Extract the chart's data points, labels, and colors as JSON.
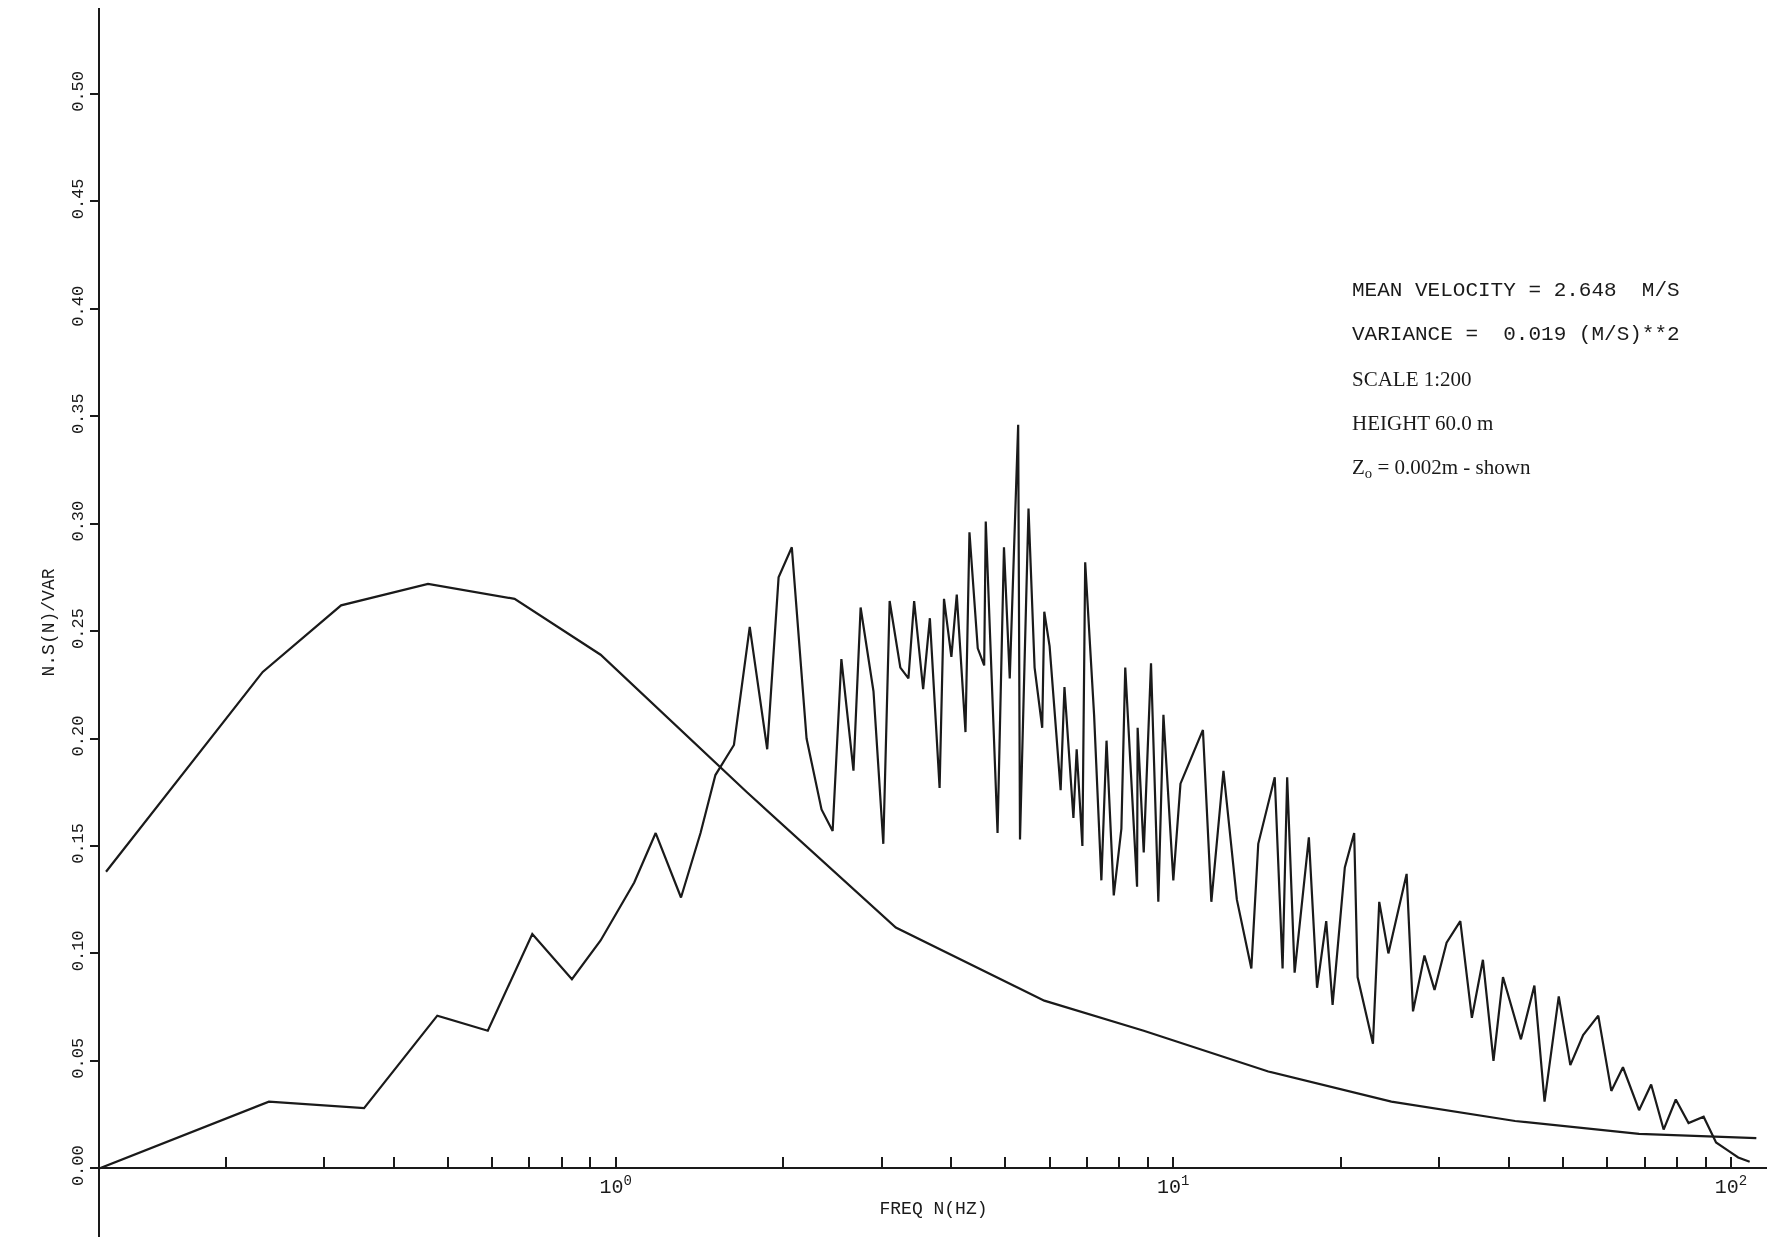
{
  "chart_data": {
    "type": "line",
    "xlabel": "FREQ N(HZ)",
    "ylabel": "N.S(N)/VAR",
    "log": "x",
    "xlim": [
      0.119,
      116
    ],
    "ylim": [
      -0.032,
      0.54
    ],
    "xticks": [
      {
        "value": 0.2,
        "label": null
      },
      {
        "value": 0.3,
        "label": null
      },
      {
        "value": 0.4,
        "label": null
      },
      {
        "value": 0.5,
        "label": null
      },
      {
        "value": 0.6,
        "label": null
      },
      {
        "value": 0.7,
        "label": null
      },
      {
        "value": 0.8,
        "label": null
      },
      {
        "value": 0.9,
        "label": null
      },
      {
        "value": 1,
        "label": "10$^{0}$"
      },
      {
        "value": 2,
        "label": null
      },
      {
        "value": 3,
        "label": null
      },
      {
        "value": 4,
        "label": null
      },
      {
        "value": 5,
        "label": null
      },
      {
        "value": 6,
        "label": null
      },
      {
        "value": 7,
        "label": null
      },
      {
        "value": 8,
        "label": null
      },
      {
        "value": 9,
        "label": null
      },
      {
        "value": 10,
        "label": "10$^{1}$"
      },
      {
        "value": 20,
        "label": null
      },
      {
        "value": 30,
        "label": null
      },
      {
        "value": 40,
        "label": null
      },
      {
        "value": 50,
        "label": null
      },
      {
        "value": 60,
        "label": null
      },
      {
        "value": 70,
        "label": null
      },
      {
        "value": 80,
        "label": null
      },
      {
        "value": 90,
        "label": null
      },
      {
        "value": 100,
        "label": "10$^{2}$"
      }
    ],
    "yticks": [
      {
        "value": 0,
        "label": "0.00"
      },
      {
        "value": 0.05,
        "label": "0.05"
      },
      {
        "value": 0.1,
        "label": "0.10"
      },
      {
        "value": 0.15,
        "label": "0.15"
      },
      {
        "value": 0.2,
        "label": "0.20"
      },
      {
        "value": 0.25,
        "label": "0.25"
      },
      {
        "value": 0.3,
        "label": "0.30"
      },
      {
        "value": 0.35,
        "label": "0.35"
      },
      {
        "value": 0.4,
        "label": "0.40"
      },
      {
        "value": 0.45,
        "label": "0.45"
      },
      {
        "value": 0.5,
        "label": "0.50"
      }
    ],
    "marker": "none",
    "line_style": "solid",
    "annotations": [
      "MEAN VELOCITY = 2.648  M/S",
      "VARIANCE =  0.019 (M/S)**2",
      "SCALE 1:200",
      "HEIGHT 60.0 m",
      "Z$_{o}$ = 0.002m - shown"
    ],
    "series": [
      {
        "color": "#1a1a1a",
        "x": [
          0.122,
          0.233,
          0.322,
          0.461,
          0.659,
          0.94,
          1.72,
          3.18,
          5.87,
          8.85,
          14.8,
          24.6,
          41.0,
          68.4,
          111
        ],
        "values": [
          0.138,
          0.231,
          0.262,
          0.272,
          0.265,
          0.239,
          0.175,
          0.112,
          0.078,
          0.064,
          0.045,
          0.031,
          0.022,
          0.016,
          0.014
        ]
      },
      {
        "color": "#1a1a1a",
        "x": [
          0.119,
          0.239,
          0.354,
          0.479,
          0.59,
          0.709,
          0.835,
          0.94,
          1.08,
          1.18,
          1.31,
          1.42,
          1.51,
          1.63,
          1.74,
          1.87,
          1.96,
          2.07,
          2.2,
          2.34,
          2.45,
          2.54,
          2.67,
          2.75,
          2.9,
          3.02,
          3.1,
          3.24,
          3.35,
          3.43,
          3.56,
          3.66,
          3.81,
          3.88,
          4.0,
          4.09,
          4.24,
          4.31,
          4.46,
          4.58,
          4.61,
          4.84,
          4.97,
          5.09,
          5.27,
          5.31,
          5.5,
          5.64,
          5.82,
          5.87,
          6.0,
          6.28,
          6.38,
          6.62,
          6.71,
          6.87,
          6.95,
          7.21,
          7.43,
          7.59,
          7.82,
          8.07,
          8.2,
          8.61,
          8.63,
          8.85,
          9.12,
          9.4,
          9.6,
          10.0,
          10.3,
          11.3,
          11.7,
          12.3,
          13.0,
          13.8,
          14.2,
          15.2,
          15.7,
          16.0,
          16.5,
          17.5,
          18.1,
          18.8,
          19.3,
          20.3,
          21.1,
          21.4,
          22.8,
          23.4,
          24.3,
          26.2,
          26.9,
          28.2,
          29.4,
          30.9,
          32.7,
          34.3,
          35.9,
          37.5,
          39.0,
          42.0,
          44.4,
          46.3,
          49.1,
          51.5,
          54.3,
          57.8,
          61.0,
          64.0,
          68.4,
          71.9,
          75.7,
          79.6,
          83.9,
          89.3,
          94.0,
          99.1,
          103,
          108
        ],
        "values": [
          0,
          0.031,
          0.028,
          0.071,
          0.064,
          0.109,
          0.088,
          0.106,
          0.133,
          0.156,
          0.126,
          0.156,
          0.183,
          0.197,
          0.252,
          0.195,
          0.275,
          0.289,
          0.2,
          0.167,
          0.157,
          0.237,
          0.185,
          0.261,
          0.222,
          0.151,
          0.264,
          0.233,
          0.228,
          0.264,
          0.223,
          0.256,
          0.177,
          0.265,
          0.238,
          0.267,
          0.203,
          0.296,
          0.242,
          0.234,
          0.301,
          0.156,
          0.289,
          0.228,
          0.346,
          0.153,
          0.307,
          0.233,
          0.205,
          0.259,
          0.243,
          0.176,
          0.224,
          0.163,
          0.195,
          0.15,
          0.282,
          0.211,
          0.134,
          0.199,
          0.127,
          0.158,
          0.233,
          0.131,
          0.205,
          0.147,
          0.235,
          0.124,
          0.211,
          0.134,
          0.179,
          0.204,
          0.124,
          0.185,
          0.125,
          0.093,
          0.151,
          0.182,
          0.093,
          0.182,
          0.091,
          0.154,
          0.084,
          0.115,
          0.076,
          0.14,
          0.156,
          0.089,
          0.058,
          0.124,
          0.1,
          0.137,
          0.073,
          0.099,
          0.083,
          0.105,
          0.115,
          0.07,
          0.097,
          0.05,
          0.089,
          0.06,
          0.085,
          0.031,
          0.08,
          0.048,
          0.062,
          0.071,
          0.036,
          0.047,
          0.027,
          0.039,
          0.018,
          0.032,
          0.021,
          0.024,
          0.012,
          0.008,
          0.005,
          0.003
        ]
      }
    ]
  }
}
